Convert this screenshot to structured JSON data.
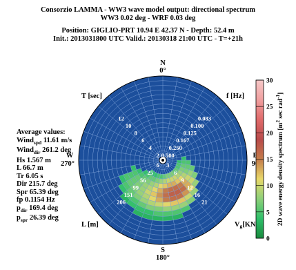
{
  "header": {
    "line1": "Consorzio LAMMA - WW3 wave model output: directional spectrum",
    "line2": "WW3 0.02 deg - WRF 0.03 deg",
    "line3": "Position: GIGLIO-PRT  10.94 E 42.37 N - Depth: 52.4 m",
    "line4": "Init.: 2013031800 UTC   Valid.: 20130318 21:00 UTC - T=+21h"
  },
  "stats": {
    "heading": "Average values:",
    "wind_spd_a": "Wind",
    "wind_spd_sub": "spd",
    "wind_spd_b": " 11.61 m/s",
    "wind_dir_a": "Wind",
    "wind_dir_sub": "dir",
    "wind_dir_b": " 261.2 deg",
    "hs": "Hs 1.567 m",
    "l": "L 66.7 m",
    "tr": "Tr 6.05 s",
    "dir": "Dir 215.7 deg",
    "spr": "Spr 65.39 deg",
    "fp": "fp 0.1154 Hz",
    "pdir_a": "p",
    "pdir_sub": "dir",
    "pdir_b": " 169.4 deg",
    "pspr_a": "p",
    "pspr_sub": "spr",
    "pspr_b": " 26.39 deg"
  },
  "chart_data": {
    "type": "heatmap",
    "projection": "polar",
    "compass": {
      "n_letter": "N",
      "n_deg": "0°",
      "e_letter": "E",
      "e_deg": "90°",
      "s_letter": "S",
      "s_deg": "180°",
      "w_letter": "W",
      "w_deg": "270°"
    },
    "corner_labels": {
      "period": "T [sec]",
      "freq": "f [Hz]",
      "length": "L [m]",
      "speed": "V"
    },
    "speed_sub": "g",
    "speed_unit": "[KN]",
    "period_ticks": [
      "2",
      "4",
      "6",
      "8",
      "10",
      "12"
    ],
    "freq_ticks": [
      "0.500",
      "0.250",
      "0.167",
      "0.125",
      "0.100",
      "0.083"
    ],
    "length_ticks": [
      "6",
      "25",
      "56",
      "99",
      "151",
      "206"
    ],
    "speed_ticks": [
      "3",
      "6",
      "9",
      "12",
      "16",
      "21"
    ],
    "rings": 18,
    "sectors": 36,
    "energy_cells": [
      {
        "dir": 95,
        "ring": 3,
        "v": 4
      },
      {
        "dir": 105,
        "ring": 3,
        "v": 5
      },
      {
        "dir": 115,
        "ring": 3,
        "v": 5
      },
      {
        "dir": 125,
        "ring": 3,
        "v": 6
      },
      {
        "dir": 135,
        "ring": 3,
        "v": 6
      },
      {
        "dir": 145,
        "ring": 3,
        "v": 7
      },
      {
        "dir": 155,
        "ring": 3,
        "v": 7
      },
      {
        "dir": 165,
        "ring": 3,
        "v": 7
      },
      {
        "dir": 175,
        "ring": 3,
        "v": 6
      },
      {
        "dir": 185,
        "ring": 3,
        "v": 5
      },
      {
        "dir": 195,
        "ring": 3,
        "v": 5
      },
      {
        "dir": 205,
        "ring": 3,
        "v": 4
      },
      {
        "dir": 215,
        "ring": 3,
        "v": 4
      },
      {
        "dir": 225,
        "ring": 3,
        "v": 3
      },
      {
        "dir": 85,
        "ring": 4,
        "v": 4
      },
      {
        "dir": 95,
        "ring": 4,
        "v": 5
      },
      {
        "dir": 105,
        "ring": 4,
        "v": 6
      },
      {
        "dir": 115,
        "ring": 4,
        "v": 7
      },
      {
        "dir": 125,
        "ring": 4,
        "v": 8
      },
      {
        "dir": 135,
        "ring": 4,
        "v": 9
      },
      {
        "dir": 145,
        "ring": 4,
        "v": 10
      },
      {
        "dir": 155,
        "ring": 4,
        "v": 10
      },
      {
        "dir": 165,
        "ring": 4,
        "v": 10
      },
      {
        "dir": 175,
        "ring": 4,
        "v": 9
      },
      {
        "dir": 185,
        "ring": 4,
        "v": 8
      },
      {
        "dir": 195,
        "ring": 4,
        "v": 7
      },
      {
        "dir": 205,
        "ring": 4,
        "v": 6
      },
      {
        "dir": 215,
        "ring": 4,
        "v": 6
      },
      {
        "dir": 225,
        "ring": 4,
        "v": 5
      },
      {
        "dir": 235,
        "ring": 4,
        "v": 4
      },
      {
        "dir": 95,
        "ring": 5,
        "v": 5
      },
      {
        "dir": 105,
        "ring": 5,
        "v": 6
      },
      {
        "dir": 115,
        "ring": 5,
        "v": 7
      },
      {
        "dir": 125,
        "ring": 5,
        "v": 9
      },
      {
        "dir": 135,
        "ring": 5,
        "v": 11
      },
      {
        "dir": 145,
        "ring": 5,
        "v": 12
      },
      {
        "dir": 155,
        "ring": 5,
        "v": 13
      },
      {
        "dir": 165,
        "ring": 5,
        "v": 13
      },
      {
        "dir": 175,
        "ring": 5,
        "v": 12
      },
      {
        "dir": 185,
        "ring": 5,
        "v": 11
      },
      {
        "dir": 195,
        "ring": 5,
        "v": 9
      },
      {
        "dir": 205,
        "ring": 5,
        "v": 8
      },
      {
        "dir": 215,
        "ring": 5,
        "v": 7
      },
      {
        "dir": 225,
        "ring": 5,
        "v": 6
      },
      {
        "dir": 235,
        "ring": 5,
        "v": 5
      },
      {
        "dir": 245,
        "ring": 5,
        "v": 4
      },
      {
        "dir": 105,
        "ring": 6,
        "v": 6
      },
      {
        "dir": 115,
        "ring": 6,
        "v": 8
      },
      {
        "dir": 125,
        "ring": 6,
        "v": 10
      },
      {
        "dir": 135,
        "ring": 6,
        "v": 13
      },
      {
        "dir": 145,
        "ring": 6,
        "v": 15
      },
      {
        "dir": 155,
        "ring": 6,
        "v": 16
      },
      {
        "dir": 165,
        "ring": 6,
        "v": 16
      },
      {
        "dir": 175,
        "ring": 6,
        "v": 15
      },
      {
        "dir": 185,
        "ring": 6,
        "v": 13
      },
      {
        "dir": 195,
        "ring": 6,
        "v": 11
      },
      {
        "dir": 205,
        "ring": 6,
        "v": 9
      },
      {
        "dir": 215,
        "ring": 6,
        "v": 8
      },
      {
        "dir": 225,
        "ring": 6,
        "v": 7
      },
      {
        "dir": 235,
        "ring": 6,
        "v": 6
      },
      {
        "dir": 245,
        "ring": 6,
        "v": 5
      },
      {
        "dir": 255,
        "ring": 6,
        "v": 4
      },
      {
        "dir": 115,
        "ring": 7,
        "v": 7
      },
      {
        "dir": 125,
        "ring": 7,
        "v": 10
      },
      {
        "dir": 135,
        "ring": 7,
        "v": 13
      },
      {
        "dir": 145,
        "ring": 7,
        "v": 16
      },
      {
        "dir": 155,
        "ring": 7,
        "v": 17
      },
      {
        "dir": 165,
        "ring": 7,
        "v": 17
      },
      {
        "dir": 175,
        "ring": 7,
        "v": 16
      },
      {
        "dir": 185,
        "ring": 7,
        "v": 14
      },
      {
        "dir": 195,
        "ring": 7,
        "v": 12
      },
      {
        "dir": 205,
        "ring": 7,
        "v": 10
      },
      {
        "dir": 215,
        "ring": 7,
        "v": 8
      },
      {
        "dir": 225,
        "ring": 7,
        "v": 7
      },
      {
        "dir": 235,
        "ring": 7,
        "v": 6
      },
      {
        "dir": 245,
        "ring": 7,
        "v": 5
      },
      {
        "dir": 125,
        "ring": 8,
        "v": 8
      },
      {
        "dir": 135,
        "ring": 8,
        "v": 11
      },
      {
        "dir": 145,
        "ring": 8,
        "v": 14
      },
      {
        "dir": 155,
        "ring": 8,
        "v": 16
      },
      {
        "dir": 165,
        "ring": 8,
        "v": 16
      },
      {
        "dir": 175,
        "ring": 8,
        "v": 15
      },
      {
        "dir": 185,
        "ring": 8,
        "v": 13
      },
      {
        "dir": 195,
        "ring": 8,
        "v": 11
      },
      {
        "dir": 205,
        "ring": 8,
        "v": 9
      },
      {
        "dir": 215,
        "ring": 8,
        "v": 8
      },
      {
        "dir": 225,
        "ring": 8,
        "v": 7
      },
      {
        "dir": 235,
        "ring": 8,
        "v": 6
      },
      {
        "dir": 245,
        "ring": 8,
        "v": 5
      },
      {
        "dir": 135,
        "ring": 9,
        "v": 8
      },
      {
        "dir": 145,
        "ring": 9,
        "v": 10
      },
      {
        "dir": 155,
        "ring": 9,
        "v": 12
      },
      {
        "dir": 165,
        "ring": 9,
        "v": 12
      },
      {
        "dir": 175,
        "ring": 9,
        "v": 11
      },
      {
        "dir": 185,
        "ring": 9,
        "v": 10
      },
      {
        "dir": 195,
        "ring": 9,
        "v": 9
      },
      {
        "dir": 205,
        "ring": 9,
        "v": 8
      },
      {
        "dir": 215,
        "ring": 9,
        "v": 7
      },
      {
        "dir": 225,
        "ring": 9,
        "v": 6
      },
      {
        "dir": 235,
        "ring": 9,
        "v": 5
      },
      {
        "dir": 245,
        "ring": 9,
        "v": 4
      },
      {
        "dir": 145,
        "ring": 10,
        "v": 7
      },
      {
        "dir": 155,
        "ring": 10,
        "v": 8
      },
      {
        "dir": 165,
        "ring": 10,
        "v": 8
      },
      {
        "dir": 175,
        "ring": 10,
        "v": 8
      },
      {
        "dir": 185,
        "ring": 10,
        "v": 7
      },
      {
        "dir": 195,
        "ring": 10,
        "v": 7
      },
      {
        "dir": 205,
        "ring": 10,
        "v": 6
      },
      {
        "dir": 215,
        "ring": 10,
        "v": 5
      },
      {
        "dir": 225,
        "ring": 10,
        "v": 5
      },
      {
        "dir": 235,
        "ring": 10,
        "v": 4
      },
      {
        "dir": 155,
        "ring": 11,
        "v": 5
      },
      {
        "dir": 165,
        "ring": 11,
        "v": 5
      },
      {
        "dir": 175,
        "ring": 11,
        "v": 5
      },
      {
        "dir": 185,
        "ring": 11,
        "v": 5
      },
      {
        "dir": 195,
        "ring": 11,
        "v": 4
      },
      {
        "dir": 205,
        "ring": 11,
        "v": 4
      },
      {
        "dir": 215,
        "ring": 11,
        "v": 4
      },
      {
        "dir": 225,
        "ring": 11,
        "v": 3
      },
      {
        "dir": 165,
        "ring": 12,
        "v": 3
      },
      {
        "dir": 175,
        "ring": 12,
        "v": 3
      },
      {
        "dir": 185,
        "ring": 12,
        "v": 3
      },
      {
        "dir": 195,
        "ring": 12,
        "v": 3
      },
      {
        "dir": 205,
        "ring": 12,
        "v": 3
      }
    ],
    "colorbar": {
      "label": "2D wave energy density spectrum [m",
      "label_sup1": "2",
      "label_mid": " sec rad",
      "label_sup2": "-1",
      "label_end": "]",
      "ticks": [
        "0",
        "5",
        "10",
        "15",
        "20",
        "25",
        "30"
      ],
      "range": [
        0,
        30
      ],
      "colors": [
        "#1a8a3e",
        "#2fbf6a",
        "#8ed07a",
        "#e8d86a",
        "#c47c4a",
        "#b84a4a",
        "#e06a6a",
        "#f0a0a0",
        "#f6c8c8"
      ]
    },
    "background_color": "#1c4f9c",
    "grid_color": "#7fa3d9"
  }
}
